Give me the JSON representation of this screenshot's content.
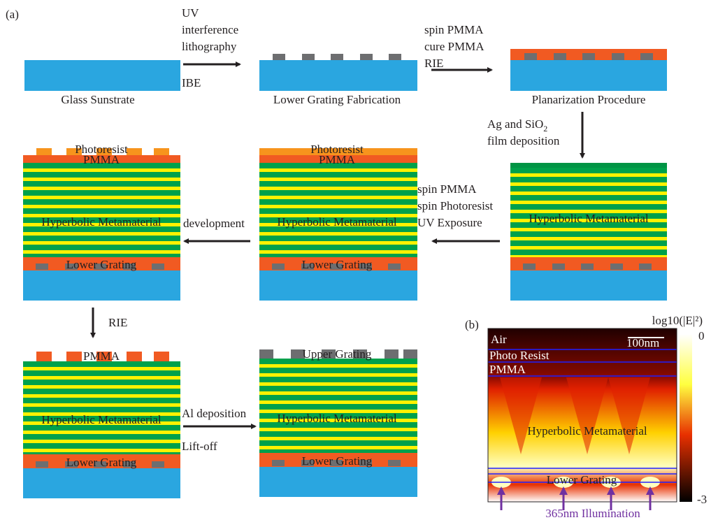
{
  "panel_a": {
    "label": "(a)",
    "steps": [
      {
        "caption": "Glass Sunstrate"
      },
      {
        "caption": "Lower Grating Fabrication"
      },
      {
        "caption": "Planarization Procedure"
      },
      {
        "metamaterial": "Hyperbolic Metamaterial"
      },
      {
        "photoresist": "Photoresist",
        "pmma": "PMMA",
        "metamaterial": "Hyperbolic Metamaterial",
        "lower_grating": "Lower Grating"
      },
      {
        "photoresist": "Photoresist",
        "pmma": "PMMA",
        "metamaterial": "Hyperbolic Metamaterial",
        "lower_grating": "Lower Grating"
      },
      {
        "pmma": "PMMA",
        "metamaterial": "Hyperbolic Metamaterial",
        "lower_grating": "Lower Grating"
      },
      {
        "upper_grating": "Upper Grating",
        "metamaterial": "Hyperbolic Metamaterial",
        "lower_grating": "Lower Grating"
      }
    ],
    "arrows": [
      {
        "lines": [
          "UV",
          "interference",
          "lithography",
          "IBE"
        ]
      },
      {
        "lines": [
          "spin PMMA",
          "cure PMMA",
          "RIE"
        ]
      },
      {
        "lines": [
          "Ag and SiO",
          "film deposition"
        ],
        "subscript": "2"
      },
      {
        "lines": [
          "spin PMMA",
          "spin Photoresist",
          "UV Exposure"
        ]
      },
      {
        "lines": [
          "development"
        ]
      },
      {
        "lines": [
          "RIE"
        ]
      },
      {
        "lines": [
          "Al deposition",
          "Lift-off"
        ]
      }
    ]
  },
  "panel_b": {
    "label": "(b)",
    "colorbar_title": "log10(|E|²)",
    "colorbar_max": "0",
    "colorbar_min": "-3",
    "scale_bar": "100nm",
    "regions": [
      "Air",
      "Photo Resist",
      "PMMA",
      "Hyperbolic Metamaterial",
      "Lower Grating"
    ],
    "illumination": "365nm Illumination"
  }
}
